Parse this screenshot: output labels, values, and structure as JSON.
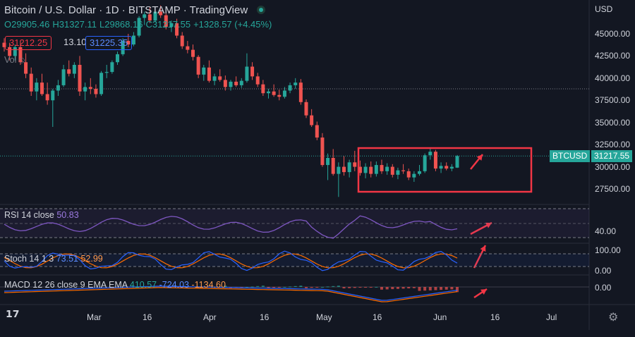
{
  "header": {
    "symbol": "Bitcoin / U.S. Dollar",
    "interval": "1D",
    "exchange": "BITSTAMP",
    "source": "TradingView",
    "ohlc": {
      "o": "O29905.46",
      "h": "H31327.11",
      "l": "L29868.16",
      "c": "C31217.55",
      "chg": "+1328.57 (+4.45%)"
    },
    "bid": "31212.25",
    "spread": "13.10",
    "ask": "31225.35",
    "vol_label": "Vol"
  },
  "price_axis": {
    "currency": "USD",
    "ticks": [
      45000,
      42500,
      40000,
      37500,
      35000,
      32500,
      30000,
      27500
    ],
    "tick_labels": [
      "45000.00",
      "42500.00",
      "40000.00",
      "37500.00",
      "35000.00",
      "32500.00",
      "30000.00",
      "27500.00"
    ],
    "last_label": "31217.55",
    "symbol_tag": "BTCUSD"
  },
  "time_axis": {
    "labels": [
      "Mar",
      "16",
      "Apr",
      "16",
      "May",
      "16",
      "Jun",
      "16",
      "Jul"
    ]
  },
  "rsi": {
    "label": "RSI 14 close",
    "value": "50.83",
    "axis": "40.00"
  },
  "stoch": {
    "label": "Stoch 14 1 3",
    "k": "73.51",
    "d": "52.99",
    "axis_top": "100.00",
    "axis_bottom": "0.00"
  },
  "macd": {
    "label": "MACD 12 26 close 9 EMA EMA",
    "v1": "410.57",
    "v2": "-724.03",
    "v3": "-1134.60",
    "axis": "0.00"
  },
  "colors": {
    "up": "#26a69a",
    "down": "#ef5350",
    "bg": "#131722",
    "annotation": "#f23645",
    "rsi": "#7e57c2",
    "stoch_k": "#2962ff",
    "stoch_d": "#ff6d00"
  },
  "chart_data": {
    "type": "candlestick",
    "ylim": [
      26000,
      48500
    ],
    "candles": [
      [
        44000,
        44500,
        43000,
        43500
      ],
      [
        43500,
        44000,
        42000,
        42500
      ],
      [
        42500,
        43800,
        42000,
        43500
      ],
      [
        43500,
        44200,
        41500,
        41800
      ],
      [
        41800,
        42800,
        40000,
        40500
      ],
      [
        40500,
        41200,
        38000,
        38500
      ],
      [
        38500,
        40000,
        37500,
        39500
      ],
      [
        39500,
        40500,
        38000,
        38200
      ],
      [
        38200,
        39500,
        37000,
        37500
      ],
      [
        37500,
        38800,
        34500,
        38600
      ],
      [
        38600,
        39800,
        38000,
        39200
      ],
      [
        39200,
        41500,
        39000,
        41000
      ],
      [
        41000,
        42000,
        40200,
        40500
      ],
      [
        40500,
        41800,
        40000,
        41500
      ],
      [
        41500,
        42500,
        38000,
        38500
      ],
      [
        38500,
        39500,
        37500,
        39000
      ],
      [
        39000,
        40000,
        38200,
        38800
      ],
      [
        38800,
        39300,
        37800,
        38200
      ],
      [
        38200,
        40800,
        38000,
        40600
      ],
      [
        40600,
        41500,
        40000,
        40700
      ],
      [
        40700,
        42000,
        40500,
        41800
      ],
      [
        41800,
        43000,
        41500,
        42700
      ],
      [
        42700,
        44500,
        42500,
        44200
      ],
      [
        44200,
        45000,
        43500,
        43800
      ],
      [
        43800,
        45200,
        43600,
        44800
      ],
      [
        44800,
        47000,
        44600,
        46800
      ],
      [
        46800,
        47500,
        46000,
        47200
      ],
      [
        47200,
        48000,
        46200,
        46500
      ],
      [
        46500,
        47800,
        46300,
        47500
      ],
      [
        47500,
        48200,
        46800,
        47100
      ],
      [
        47100,
        47300,
        45500,
        45800
      ],
      [
        45800,
        46500,
        45200,
        46200
      ],
      [
        46200,
        46700,
        44500,
        44800
      ],
      [
        44800,
        45200,
        43300,
        43600
      ],
      [
        43600,
        44200,
        42800,
        43200
      ],
      [
        43200,
        43800,
        42000,
        42400
      ],
      [
        42400,
        42600,
        40000,
        40400
      ],
      [
        40400,
        41500,
        39700,
        41200
      ],
      [
        41200,
        42000,
        39500,
        39700
      ],
      [
        39700,
        40500,
        39200,
        40200
      ],
      [
        40200,
        41000,
        39600,
        39800
      ],
      [
        39800,
        40300,
        38600,
        39000
      ],
      [
        39000,
        39800,
        38600,
        39600
      ],
      [
        39600,
        40200,
        39000,
        39200
      ],
      [
        39200,
        40000,
        38900,
        39700
      ],
      [
        39700,
        42800,
        39500,
        41300
      ],
      [
        41300,
        41800,
        39800,
        40200
      ],
      [
        40200,
        40600,
        39000,
        39300
      ],
      [
        39300,
        39800,
        38000,
        38300
      ],
      [
        38300,
        38800,
        37700,
        38500
      ],
      [
        38500,
        39300,
        37900,
        38100
      ],
      [
        38100,
        38700,
        37500,
        37900
      ],
      [
        37900,
        39000,
        37700,
        38600
      ],
      [
        38600,
        39500,
        38300,
        39200
      ],
      [
        39200,
        40000,
        38800,
        39500
      ],
      [
        39500,
        39900,
        37000,
        37300
      ],
      [
        37300,
        37600,
        35500,
        35800
      ],
      [
        35800,
        36500,
        34500,
        34700
      ],
      [
        34700,
        35100,
        33000,
        33300
      ],
      [
        33300,
        33800,
        30000,
        30200
      ],
      [
        30200,
        31500,
        28500,
        31000
      ],
      [
        31000,
        32000,
        29000,
        29200
      ],
      [
        29200,
        30500,
        26600,
        30000
      ],
      [
        30000,
        31200,
        29000,
        29400
      ],
      [
        29400,
        30800,
        28800,
        30500
      ],
      [
        30500,
        31800,
        29500,
        30000
      ],
      [
        30000,
        30700,
        29000,
        29300
      ],
      [
        29300,
        30400,
        28700,
        30000
      ],
      [
        30000,
        30600,
        28800,
        29200
      ],
      [
        29200,
        30600,
        28900,
        30200
      ],
      [
        30200,
        30800,
        29200,
        29500
      ],
      [
        29500,
        30400,
        29100,
        30000
      ],
      [
        30000,
        30300,
        28800,
        29100
      ],
      [
        29100,
        29900,
        28600,
        29600
      ],
      [
        29600,
        30300,
        29200,
        29500
      ],
      [
        29500,
        29800,
        28500,
        28800
      ],
      [
        28800,
        29500,
        28300,
        29200
      ],
      [
        29200,
        30200,
        29000,
        29500
      ],
      [
        29500,
        31500,
        29300,
        31300
      ],
      [
        31300,
        32200,
        30800,
        31700
      ],
      [
        31700,
        31900,
        29500,
        29800
      ],
      [
        29800,
        30500,
        29300,
        30100
      ],
      [
        30100,
        30500,
        29600,
        29800
      ],
      [
        29800,
        30300,
        29500,
        30000
      ],
      [
        29905,
        31327,
        29868,
        31217
      ]
    ]
  }
}
